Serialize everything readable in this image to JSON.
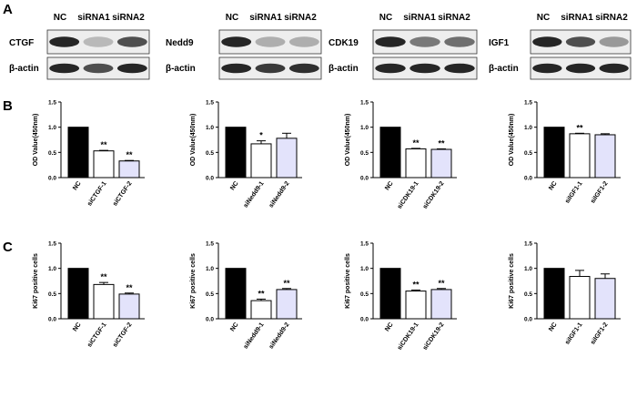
{
  "panels": {
    "a": "A",
    "b": "B",
    "c": "C"
  },
  "colors": {
    "nc_bar": "#000000",
    "sirna1_bar": "#ffffff",
    "sirna2_bar": "#e3e3fb",
    "band": "#1a1a1a"
  },
  "blots": [
    {
      "target": "CTGF",
      "lanes": [
        "NC",
        "siRNA1",
        "siRNA2"
      ],
      "loading": "β-actin",
      "target_band_intensity": [
        0.95,
        0.25,
        0.75
      ],
      "actin_band_intensity": [
        0.95,
        0.75,
        0.95
      ]
    },
    {
      "target": "Nedd9",
      "lanes": [
        "NC",
        "siRNA1",
        "siRNA2"
      ],
      "loading": "β-actin",
      "target_band_intensity": [
        0.95,
        0.3,
        0.3
      ],
      "actin_band_intensity": [
        0.95,
        0.85,
        0.9
      ]
    },
    {
      "target": "CDK19",
      "lanes": [
        "NC",
        "siRNA1",
        "siRNA2"
      ],
      "loading": "β-actin",
      "target_band_intensity": [
        0.95,
        0.55,
        0.6
      ],
      "actin_band_intensity": [
        0.95,
        0.95,
        0.95
      ]
    },
    {
      "target": "IGF1",
      "lanes": [
        "NC",
        "siRNA1",
        "siRNA2"
      ],
      "loading": "β-actin",
      "target_band_intensity": [
        0.95,
        0.75,
        0.4
      ],
      "actin_band_intensity": [
        0.95,
        0.95,
        0.95
      ]
    }
  ],
  "chart_data": [
    {
      "type": "bar",
      "row": "B",
      "ylabel": "OD Value(450nm)",
      "ylim": [
        0,
        1.5
      ],
      "yticks": [
        "0.0",
        "0.5",
        "1.0",
        "1.5"
      ],
      "categories": [
        "NC",
        "siCTGF-1",
        "siCTGF-2"
      ],
      "values": [
        1.0,
        0.53,
        0.33
      ],
      "errors": [
        0,
        0.01,
        0.01
      ],
      "significance": [
        "",
        "**",
        "**"
      ]
    },
    {
      "type": "bar",
      "row": "B",
      "ylabel": "OD Value(450nm)",
      "ylim": [
        0,
        1.5
      ],
      "yticks": [
        "0.0",
        "0.5",
        "1.0",
        "1.5"
      ],
      "categories": [
        "NC",
        "siNedd9-1",
        "siNedd9-2"
      ],
      "values": [
        1.0,
        0.67,
        0.78
      ],
      "errors": [
        0,
        0.06,
        0.1
      ],
      "significance": [
        "",
        "*",
        ""
      ]
    },
    {
      "type": "bar",
      "row": "B",
      "ylabel": "OD Value(450nm)",
      "ylim": [
        0,
        1.5
      ],
      "yticks": [
        "0.0",
        "0.5",
        "1.0",
        "1.5"
      ],
      "categories": [
        "NC",
        "siCDK19-1",
        "siCDK19-2"
      ],
      "values": [
        1.0,
        0.57,
        0.56
      ],
      "errors": [
        0,
        0.01,
        0.01
      ],
      "significance": [
        "",
        "**",
        "**"
      ]
    },
    {
      "type": "bar",
      "row": "B",
      "ylabel": "OD Value(450nm)",
      "ylim": [
        0,
        1.5
      ],
      "yticks": [
        "0.0",
        "0.5",
        "1.0",
        "1.5"
      ],
      "categories": [
        "NC",
        "siIGF1-1",
        "siIGF1-2"
      ],
      "values": [
        1.0,
        0.87,
        0.85
      ],
      "errors": [
        0,
        0.01,
        0.02
      ],
      "significance": [
        "",
        "**",
        ""
      ]
    },
    {
      "type": "bar",
      "row": "C",
      "ylabel": "Ki67 positive cells",
      "ylim": [
        0,
        1.5
      ],
      "yticks": [
        "0.0",
        "0.5",
        "1.0",
        "1.5"
      ],
      "categories": [
        "NC",
        "siCTGF-1",
        "siCTGF-2"
      ],
      "values": [
        1.0,
        0.68,
        0.49
      ],
      "errors": [
        0,
        0.04,
        0.02
      ],
      "significance": [
        "",
        "**",
        "**"
      ]
    },
    {
      "type": "bar",
      "row": "C",
      "ylabel": "Ki67 positive cells",
      "ylim": [
        0,
        1.5
      ],
      "yticks": [
        "0.0",
        "0.5",
        "1.0",
        "1.5"
      ],
      "categories": [
        "NC",
        "siNedd9-1",
        "siNedd9-2"
      ],
      "values": [
        1.0,
        0.36,
        0.58
      ],
      "errors": [
        0,
        0.03,
        0.02
      ],
      "significance": [
        "",
        "**",
        "**"
      ]
    },
    {
      "type": "bar",
      "row": "C",
      "ylabel": "Ki67 positive cells",
      "ylim": [
        0,
        1.5
      ],
      "yticks": [
        "0.0",
        "0.5",
        "1.0",
        "1.5"
      ],
      "categories": [
        "NC",
        "siCDK19-1",
        "siCDK19-2"
      ],
      "values": [
        1.0,
        0.55,
        0.58
      ],
      "errors": [
        0,
        0.02,
        0.02
      ],
      "significance": [
        "",
        "**",
        "**"
      ]
    },
    {
      "type": "bar",
      "row": "C",
      "ylabel": "Ki67 positive cells",
      "ylim": [
        0,
        1.5
      ],
      "yticks": [
        "0.0",
        "0.5",
        "1.0",
        "1.5"
      ],
      "categories": [
        "NC",
        "siIGF1-1",
        "siIGF1-2"
      ],
      "values": [
        1.0,
        0.84,
        0.8
      ],
      "errors": [
        0,
        0.12,
        0.09
      ],
      "significance": [
        "",
        "",
        ""
      ]
    }
  ]
}
